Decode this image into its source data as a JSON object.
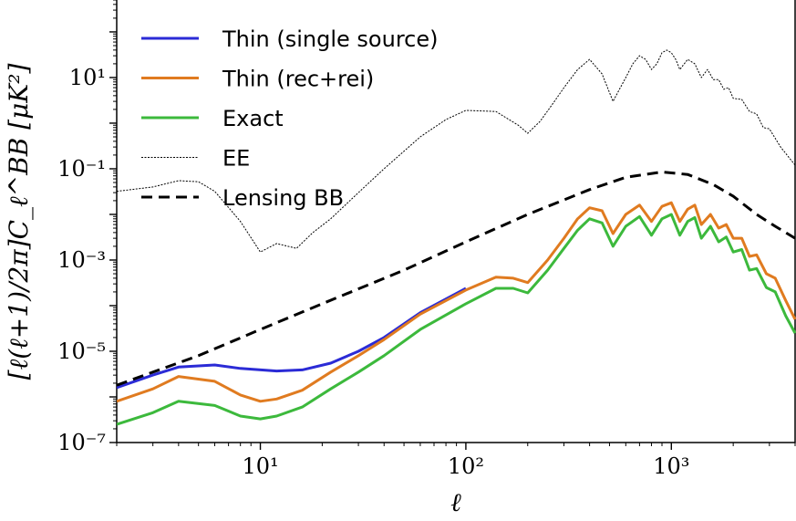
{
  "chart_data": {
    "type": "line",
    "xlabel": "ℓ",
    "ylabel": "[ℓ(ℓ+1)/2π]C_ℓ^BB [μK²]",
    "xscale": "log",
    "yscale": "log",
    "xlim": [
      2,
      4000
    ],
    "ylim": [
      1e-07,
      500
    ],
    "x_ticks": [
      {
        "value": 10,
        "label": "10¹"
      },
      {
        "value": 100,
        "label": "10²"
      },
      {
        "value": 1000,
        "label": "10³"
      }
    ],
    "y_ticks": [
      {
        "value": 1e-07,
        "label": "10⁻⁷"
      },
      {
        "value": 1e-05,
        "label": "10⁻⁵"
      },
      {
        "value": 0.001,
        "label": "10⁻³"
      },
      {
        "value": 0.1,
        "label": "10⁻¹"
      },
      {
        "value": 10,
        "label": "10¹"
      }
    ],
    "grid": false,
    "legend_position": "top-left",
    "series": [
      {
        "name": "Thin (single source)",
        "color": "#2b2bd6",
        "style": "solid",
        "points": [
          [
            2,
            1.6e-06
          ],
          [
            3,
            3e-06
          ],
          [
            4,
            4.5e-06
          ],
          [
            6,
            5e-06
          ],
          [
            8,
            4.2e-06
          ],
          [
            12,
            3.7e-06
          ],
          [
            16,
            3.9e-06
          ],
          [
            22,
            5.5e-06
          ],
          [
            30,
            1e-05
          ],
          [
            40,
            2e-05
          ],
          [
            60,
            7e-05
          ],
          [
            100,
            0.00024
          ]
        ]
      },
      {
        "name": "Thin (rec+rei)",
        "color": "#e07b20",
        "style": "solid",
        "points": [
          [
            2,
            8e-07
          ],
          [
            3,
            1.5e-06
          ],
          [
            4,
            2.8e-06
          ],
          [
            6,
            2.2e-06
          ],
          [
            8,
            1.1e-06
          ],
          [
            10,
            8e-07
          ],
          [
            12,
            9e-07
          ],
          [
            16,
            1.4e-06
          ],
          [
            22,
            3.5e-06
          ],
          [
            30,
            8e-06
          ],
          [
            40,
            1.8e-05
          ],
          [
            60,
            6.5e-05
          ],
          [
            100,
            0.00022
          ],
          [
            140,
            0.00042
          ],
          [
            170,
            0.0004
          ],
          [
            200,
            0.00032
          ],
          [
            250,
            0.001
          ],
          [
            300,
            0.003
          ],
          [
            350,
            0.008
          ],
          [
            400,
            0.014
          ],
          [
            460,
            0.012
          ],
          [
            520,
            0.0038
          ],
          [
            600,
            0.01
          ],
          [
            700,
            0.016
          ],
          [
            800,
            0.007
          ],
          [
            900,
            0.015
          ],
          [
            1000,
            0.018
          ],
          [
            1100,
            0.007
          ],
          [
            1200,
            0.013
          ],
          [
            1300,
            0.016
          ],
          [
            1400,
            0.006
          ],
          [
            1550,
            0.01
          ],
          [
            1700,
            0.005
          ],
          [
            1850,
            0.006
          ],
          [
            2000,
            0.003
          ],
          [
            2200,
            0.003
          ],
          [
            2400,
            0.0012
          ],
          [
            2600,
            0.0013
          ],
          [
            2900,
            0.0005
          ],
          [
            3200,
            0.0004
          ],
          [
            3600,
            0.00013
          ],
          [
            4000,
            5e-05
          ]
        ]
      },
      {
        "name": "Exact",
        "color": "#3cb93c",
        "style": "solid",
        "points": [
          [
            2,
            2.5e-07
          ],
          [
            3,
            4.5e-07
          ],
          [
            4,
            8e-07
          ],
          [
            6,
            6.5e-07
          ],
          [
            8,
            3.8e-07
          ],
          [
            10,
            3.3e-07
          ],
          [
            12,
            3.8e-07
          ],
          [
            16,
            6e-07
          ],
          [
            22,
            1.5e-06
          ],
          [
            30,
            3.5e-06
          ],
          [
            40,
            8e-06
          ],
          [
            60,
            3e-05
          ],
          [
            100,
            0.00011
          ],
          [
            140,
            0.00024
          ],
          [
            170,
            0.00024
          ],
          [
            200,
            0.00019
          ],
          [
            250,
            0.0006
          ],
          [
            300,
            0.0018
          ],
          [
            350,
            0.0045
          ],
          [
            400,
            0.008
          ],
          [
            460,
            0.0065
          ],
          [
            520,
            0.002
          ],
          [
            600,
            0.0055
          ],
          [
            700,
            0.009
          ],
          [
            800,
            0.0035
          ],
          [
            900,
            0.008
          ],
          [
            1000,
            0.01
          ],
          [
            1100,
            0.0035
          ],
          [
            1200,
            0.007
          ],
          [
            1300,
            0.0085
          ],
          [
            1400,
            0.003
          ],
          [
            1550,
            0.0055
          ],
          [
            1700,
            0.0025
          ],
          [
            1850,
            0.0032
          ],
          [
            2000,
            0.0015
          ],
          [
            2200,
            0.0017
          ],
          [
            2400,
            0.0006
          ],
          [
            2600,
            0.00065
          ],
          [
            2900,
            0.00025
          ],
          [
            3200,
            0.0002
          ],
          [
            3600,
            6e-05
          ],
          [
            4000,
            2.5e-05
          ]
        ]
      },
      {
        "name": "EE",
        "color": "#000000",
        "style": "thin-dotted",
        "points": [
          [
            2,
            0.032
          ],
          [
            3,
            0.04
          ],
          [
            4,
            0.055
          ],
          [
            5,
            0.052
          ],
          [
            6,
            0.032
          ],
          [
            8,
            0.007
          ],
          [
            10,
            0.0015
          ],
          [
            12,
            0.0023
          ],
          [
            15,
            0.0018
          ],
          [
            18,
            0.004
          ],
          [
            22,
            0.008
          ],
          [
            30,
            0.03
          ],
          [
            40,
            0.1
          ],
          [
            60,
            0.5
          ],
          [
            80,
            1.2
          ],
          [
            100,
            1.9
          ],
          [
            140,
            1.8
          ],
          [
            180,
            0.9
          ],
          [
            200,
            0.6
          ],
          [
            230,
            1.1
          ],
          [
            270,
            3
          ],
          [
            300,
            6
          ],
          [
            350,
            15
          ],
          [
            400,
            25
          ],
          [
            460,
            12
          ],
          [
            520,
            3
          ],
          [
            600,
            10
          ],
          [
            650,
            20
          ],
          [
            700,
            30
          ],
          [
            750,
            25
          ],
          [
            800,
            15
          ],
          [
            850,
            20
          ],
          [
            900,
            35
          ],
          [
            950,
            40
          ],
          [
            1000,
            35
          ],
          [
            1050,
            25
          ],
          [
            1100,
            15
          ],
          [
            1200,
            25
          ],
          [
            1300,
            20
          ],
          [
            1400,
            10
          ],
          [
            1500,
            15
          ],
          [
            1600,
            9
          ],
          [
            1700,
            9
          ],
          [
            1800,
            5.5
          ],
          [
            1900,
            6
          ],
          [
            2000,
            3.5
          ],
          [
            2200,
            3.3
          ],
          [
            2400,
            1.8
          ],
          [
            2600,
            1.6
          ],
          [
            2800,
            0.8
          ],
          [
            3000,
            0.75
          ],
          [
            3400,
            0.3
          ],
          [
            4000,
            0.12
          ]
        ]
      },
      {
        "name": "Lensing BB",
        "color": "#000000",
        "style": "dashed",
        "points": [
          [
            2,
            1.8e-06
          ],
          [
            3,
            3.5e-06
          ],
          [
            5,
            8e-06
          ],
          [
            10,
            3e-05
          ],
          [
            20,
            0.00011
          ],
          [
            50,
            0.0006
          ],
          [
            100,
            0.0025
          ],
          [
            200,
            0.01
          ],
          [
            400,
            0.035
          ],
          [
            600,
            0.065
          ],
          [
            900,
            0.085
          ],
          [
            1200,
            0.075
          ],
          [
            1600,
            0.045
          ],
          [
            2000,
            0.025
          ],
          [
            2600,
            0.01
          ],
          [
            3200,
            0.0055
          ],
          [
            4000,
            0.003
          ]
        ]
      }
    ]
  }
}
